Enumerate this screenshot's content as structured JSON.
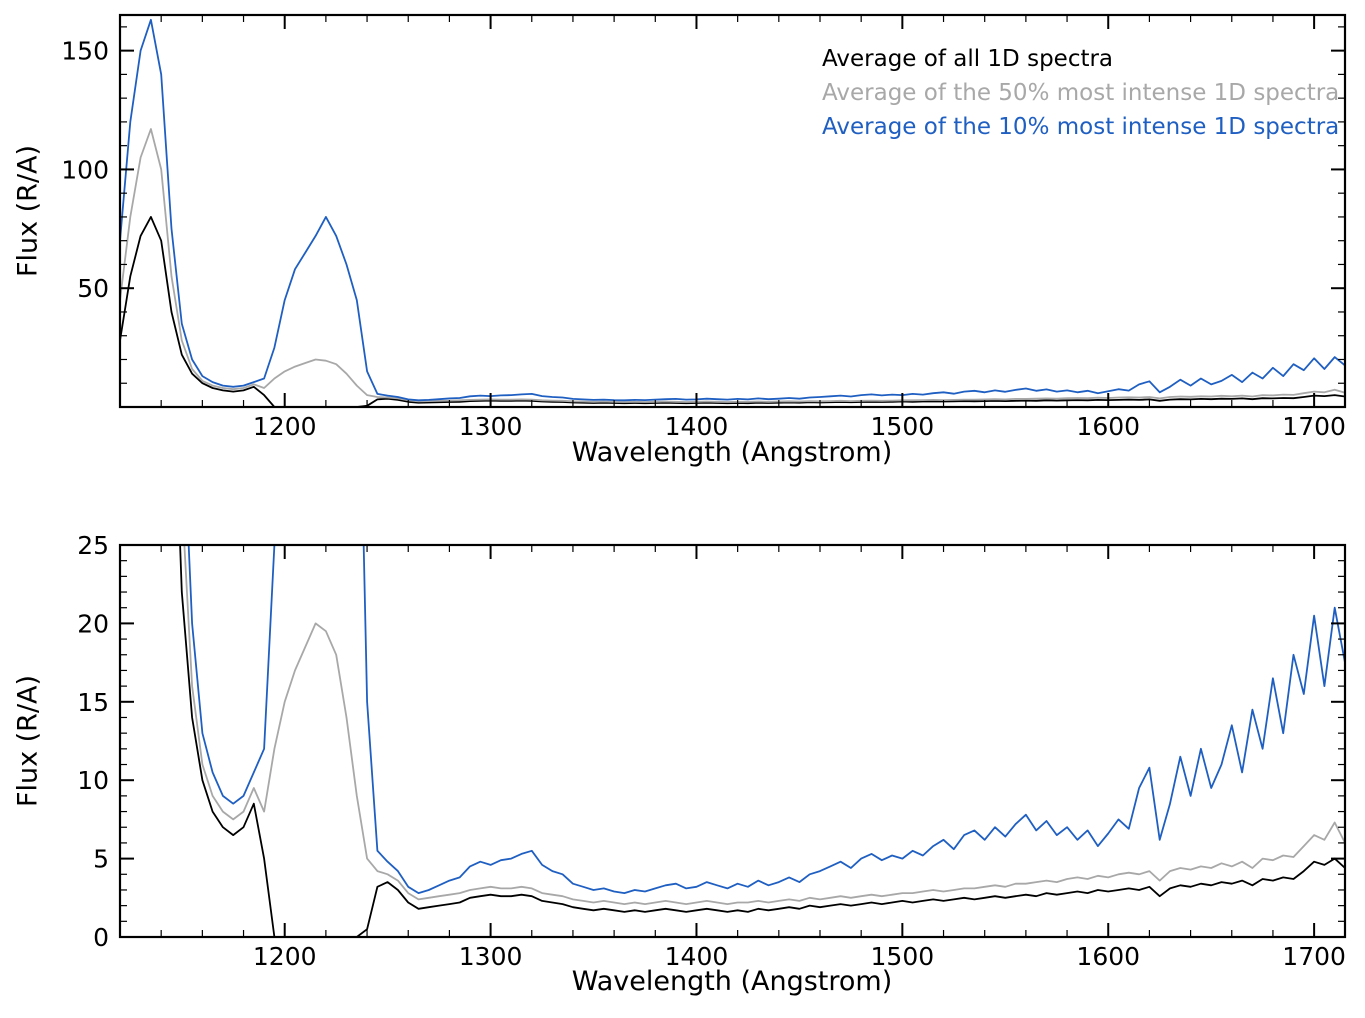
{
  "figure": {
    "xlabel": "Wavelength (Angstrom)",
    "ylabel": "Flux (R/A)",
    "background": "#ffffff"
  },
  "legend": {
    "items": [
      {
        "label": "Average of all 1D spectra",
        "color": "#000000"
      },
      {
        "label": "Average of the 50% most intense 1D spectra",
        "color": "#a8a8a8"
      },
      {
        "label": "Average of the 10% most intense 1D spectra",
        "color": "#1f5fc2"
      }
    ]
  },
  "chart_data": [
    {
      "type": "line",
      "title": "",
      "xlabel": "Wavelength (Angstrom)",
      "ylabel": "Flux (R/A)",
      "xlim": [
        1120,
        1715
      ],
      "ylim": [
        0,
        165
      ],
      "x_ticks": [
        1200,
        1300,
        1400,
        1500,
        1600,
        1700
      ],
      "y_ticks": [
        50,
        100,
        150
      ],
      "x_minor_step": 20,
      "y_minor_step": 10,
      "grid": false,
      "legend_position": "upper right inside",
      "x": [
        1120,
        1125,
        1130,
        1135,
        1140,
        1145,
        1150,
        1155,
        1160,
        1165,
        1170,
        1175,
        1180,
        1185,
        1190,
        1195,
        1200,
        1205,
        1210,
        1215,
        1220,
        1225,
        1230,
        1235,
        1240,
        1245,
        1250,
        1255,
        1260,
        1265,
        1270,
        1275,
        1280,
        1285,
        1290,
        1295,
        1300,
        1305,
        1310,
        1315,
        1320,
        1325,
        1330,
        1335,
        1340,
        1345,
        1350,
        1355,
        1360,
        1365,
        1370,
        1375,
        1380,
        1385,
        1390,
        1395,
        1400,
        1405,
        1410,
        1415,
        1420,
        1425,
        1430,
        1435,
        1440,
        1445,
        1450,
        1455,
        1460,
        1465,
        1470,
        1475,
        1480,
        1485,
        1490,
        1495,
        1500,
        1505,
        1510,
        1515,
        1520,
        1525,
        1530,
        1535,
        1540,
        1545,
        1550,
        1555,
        1560,
        1565,
        1570,
        1575,
        1580,
        1585,
        1590,
        1595,
        1600,
        1605,
        1610,
        1615,
        1620,
        1625,
        1630,
        1635,
        1640,
        1645,
        1650,
        1655,
        1660,
        1665,
        1670,
        1675,
        1680,
        1685,
        1690,
        1695,
        1700,
        1705,
        1710,
        1715
      ],
      "series": [
        {
          "name": "Average of all 1D spectra",
          "color": "#000000",
          "values": [
            28,
            55,
            72,
            80,
            70,
            40,
            22,
            14,
            10,
            8,
            7,
            6.5,
            7,
            8.5,
            5,
            0,
            0,
            0,
            0,
            0,
            0,
            0,
            0,
            0,
            0.5,
            3.2,
            3.5,
            3.0,
            2.2,
            1.8,
            1.9,
            2.0,
            2.1,
            2.2,
            2.5,
            2.6,
            2.7,
            2.6,
            2.6,
            2.7,
            2.6,
            2.3,
            2.2,
            2.1,
            1.9,
            1.8,
            1.7,
            1.8,
            1.7,
            1.6,
            1.7,
            1.6,
            1.7,
            1.8,
            1.7,
            1.6,
            1.7,
            1.8,
            1.7,
            1.6,
            1.7,
            1.6,
            1.8,
            1.7,
            1.8,
            1.9,
            1.8,
            2.0,
            1.9,
            2.0,
            2.1,
            2.0,
            2.1,
            2.2,
            2.1,
            2.2,
            2.3,
            2.2,
            2.3,
            2.4,
            2.3,
            2.4,
            2.5,
            2.4,
            2.5,
            2.6,
            2.5,
            2.6,
            2.7,
            2.6,
            2.8,
            2.7,
            2.8,
            2.9,
            2.8,
            3.0,
            2.9,
            3.0,
            3.1,
            3.0,
            3.2,
            2.6,
            3.1,
            3.3,
            3.2,
            3.4,
            3.3,
            3.5,
            3.4,
            3.6,
            3.3,
            3.7,
            3.6,
            3.8,
            3.7,
            4.2,
            4.8,
            4.6,
            5.0,
            4.4
          ]
        },
        {
          "name": "Average of the 50% most intense 1D spectra",
          "color": "#a8a8a8",
          "values": [
            45,
            80,
            105,
            117,
            100,
            55,
            28,
            16,
            11,
            9,
            8,
            7.5,
            8,
            9.5,
            8,
            12,
            15,
            17,
            18.5,
            20,
            19.5,
            18,
            14,
            9,
            5,
            4.2,
            4.0,
            3.6,
            2.8,
            2.4,
            2.5,
            2.6,
            2.7,
            2.8,
            3.0,
            3.1,
            3.2,
            3.1,
            3.1,
            3.2,
            3.1,
            2.8,
            2.7,
            2.6,
            2.4,
            2.3,
            2.2,
            2.3,
            2.2,
            2.1,
            2.2,
            2.1,
            2.2,
            2.3,
            2.2,
            2.1,
            2.2,
            2.3,
            2.2,
            2.1,
            2.2,
            2.2,
            2.3,
            2.2,
            2.3,
            2.4,
            2.3,
            2.5,
            2.4,
            2.5,
            2.6,
            2.5,
            2.6,
            2.7,
            2.6,
            2.7,
            2.8,
            2.8,
            2.9,
            3.0,
            2.9,
            3.0,
            3.1,
            3.1,
            3.2,
            3.3,
            3.2,
            3.4,
            3.4,
            3.5,
            3.6,
            3.5,
            3.7,
            3.8,
            3.7,
            3.9,
            3.8,
            4.0,
            4.1,
            4.0,
            4.2,
            3.6,
            4.2,
            4.4,
            4.3,
            4.5,
            4.4,
            4.7,
            4.5,
            4.8,
            4.4,
            5.0,
            4.9,
            5.2,
            5.1,
            5.8,
            6.5,
            6.2,
            7.3,
            6.0
          ]
        },
        {
          "name": "Average of the 10% most intense 1D spectra",
          "color": "#1f5fc2",
          "values": [
            70,
            120,
            150,
            163,
            140,
            75,
            35,
            20,
            13,
            10.5,
            9,
            8.5,
            9,
            10.5,
            12,
            25,
            45,
            58,
            65,
            72,
            80,
            72,
            60,
            45,
            15,
            5.5,
            4.8,
            4.2,
            3.2,
            2.8,
            3.0,
            3.3,
            3.6,
            3.8,
            4.5,
            4.8,
            4.6,
            4.9,
            5.0,
            5.3,
            5.5,
            4.6,
            4.2,
            4.0,
            3.4,
            3.2,
            3.0,
            3.1,
            2.9,
            2.8,
            3.0,
            2.9,
            3.1,
            3.3,
            3.4,
            3.1,
            3.2,
            3.5,
            3.3,
            3.1,
            3.4,
            3.2,
            3.6,
            3.3,
            3.5,
            3.8,
            3.5,
            4.0,
            4.2,
            4.5,
            4.8,
            4.4,
            5.0,
            5.3,
            4.9,
            5.2,
            5.0,
            5.5,
            5.2,
            5.8,
            6.2,
            5.6,
            6.5,
            6.8,
            6.2,
            7.0,
            6.4,
            7.2,
            7.8,
            6.8,
            7.4,
            6.5,
            7.0,
            6.2,
            6.8,
            5.8,
            6.6,
            7.5,
            6.9,
            9.5,
            10.8,
            6.2,
            8.5,
            11.5,
            9.0,
            12.0,
            9.5,
            11.0,
            13.5,
            10.5,
            14.5,
            12.0,
            16.5,
            13.0,
            18.0,
            15.5,
            20.5,
            16.0,
            21.0,
            17.5
          ]
        }
      ]
    },
    {
      "type": "line",
      "title": "",
      "xlabel": "Wavelength (Angstrom)",
      "ylabel": "Flux (R/A)",
      "xlim": [
        1120,
        1715
      ],
      "ylim": [
        0,
        25
      ],
      "x_ticks": [
        1200,
        1300,
        1400,
        1500,
        1600,
        1700
      ],
      "y_ticks": [
        0,
        5,
        10,
        15,
        20,
        25
      ],
      "x_minor_step": 20,
      "y_minor_step": 1,
      "grid": false,
      "legend_position": "none",
      "x": [
        1120,
        1125,
        1130,
        1135,
        1140,
        1145,
        1150,
        1155,
        1160,
        1165,
        1170,
        1175,
        1180,
        1185,
        1190,
        1195,
        1200,
        1205,
        1210,
        1215,
        1220,
        1225,
        1230,
        1235,
        1240,
        1245,
        1250,
        1255,
        1260,
        1265,
        1270,
        1275,
        1280,
        1285,
        1290,
        1295,
        1300,
        1305,
        1310,
        1315,
        1320,
        1325,
        1330,
        1335,
        1340,
        1345,
        1350,
        1355,
        1360,
        1365,
        1370,
        1375,
        1380,
        1385,
        1390,
        1395,
        1400,
        1405,
        1410,
        1415,
        1420,
        1425,
        1430,
        1435,
        1440,
        1445,
        1450,
        1455,
        1460,
        1465,
        1470,
        1475,
        1480,
        1485,
        1490,
        1495,
        1500,
        1505,
        1510,
        1515,
        1520,
        1525,
        1530,
        1535,
        1540,
        1545,
        1550,
        1555,
        1560,
        1565,
        1570,
        1575,
        1580,
        1585,
        1590,
        1595,
        1600,
        1605,
        1610,
        1615,
        1620,
        1625,
        1630,
        1635,
        1640,
        1645,
        1650,
        1655,
        1660,
        1665,
        1670,
        1675,
        1680,
        1685,
        1690,
        1695,
        1700,
        1705,
        1710,
        1715
      ],
      "series": [
        {
          "name": "Average of all 1D spectra",
          "color": "#000000",
          "values": [
            28,
            55,
            72,
            80,
            70,
            40,
            22,
            14,
            10,
            8,
            7,
            6.5,
            7,
            8.5,
            5,
            0,
            0,
            0,
            0,
            0,
            0,
            0,
            0,
            0,
            0.5,
            3.2,
            3.5,
            3.0,
            2.2,
            1.8,
            1.9,
            2.0,
            2.1,
            2.2,
            2.5,
            2.6,
            2.7,
            2.6,
            2.6,
            2.7,
            2.6,
            2.3,
            2.2,
            2.1,
            1.9,
            1.8,
            1.7,
            1.8,
            1.7,
            1.6,
            1.7,
            1.6,
            1.7,
            1.8,
            1.7,
            1.6,
            1.7,
            1.8,
            1.7,
            1.6,
            1.7,
            1.6,
            1.8,
            1.7,
            1.8,
            1.9,
            1.8,
            2.0,
            1.9,
            2.0,
            2.1,
            2.0,
            2.1,
            2.2,
            2.1,
            2.2,
            2.3,
            2.2,
            2.3,
            2.4,
            2.3,
            2.4,
            2.5,
            2.4,
            2.5,
            2.6,
            2.5,
            2.6,
            2.7,
            2.6,
            2.8,
            2.7,
            2.8,
            2.9,
            2.8,
            3.0,
            2.9,
            3.0,
            3.1,
            3.0,
            3.2,
            2.6,
            3.1,
            3.3,
            3.2,
            3.4,
            3.3,
            3.5,
            3.4,
            3.6,
            3.3,
            3.7,
            3.6,
            3.8,
            3.7,
            4.2,
            4.8,
            4.6,
            5.0,
            4.4
          ]
        },
        {
          "name": "Average of the 50% most intense 1D spectra",
          "color": "#a8a8a8",
          "values": [
            45,
            80,
            105,
            117,
            100,
            55,
            28,
            16,
            11,
            9,
            8,
            7.5,
            8,
            9.5,
            8,
            12,
            15,
            17,
            18.5,
            20,
            19.5,
            18,
            14,
            9,
            5,
            4.2,
            4.0,
            3.6,
            2.8,
            2.4,
            2.5,
            2.6,
            2.7,
            2.8,
            3.0,
            3.1,
            3.2,
            3.1,
            3.1,
            3.2,
            3.1,
            2.8,
            2.7,
            2.6,
            2.4,
            2.3,
            2.2,
            2.3,
            2.2,
            2.1,
            2.2,
            2.1,
            2.2,
            2.3,
            2.2,
            2.1,
            2.2,
            2.3,
            2.2,
            2.1,
            2.2,
            2.2,
            2.3,
            2.2,
            2.3,
            2.4,
            2.3,
            2.5,
            2.4,
            2.5,
            2.6,
            2.5,
            2.6,
            2.7,
            2.6,
            2.7,
            2.8,
            2.8,
            2.9,
            3.0,
            2.9,
            3.0,
            3.1,
            3.1,
            3.2,
            3.3,
            3.2,
            3.4,
            3.4,
            3.5,
            3.6,
            3.5,
            3.7,
            3.8,
            3.7,
            3.9,
            3.8,
            4.0,
            4.1,
            4.0,
            4.2,
            3.6,
            4.2,
            4.4,
            4.3,
            4.5,
            4.4,
            4.7,
            4.5,
            4.8,
            4.4,
            5.0,
            4.9,
            5.2,
            5.1,
            5.8,
            6.5,
            6.2,
            7.3,
            6.0
          ]
        },
        {
          "name": "Average of the 10% most intense 1D spectra",
          "color": "#1f5fc2",
          "values": [
            70,
            120,
            150,
            163,
            140,
            75,
            35,
            20,
            13,
            10.5,
            9,
            8.5,
            9,
            10.5,
            12,
            25,
            45,
            58,
            65,
            72,
            80,
            72,
            60,
            45,
            15,
            5.5,
            4.8,
            4.2,
            3.2,
            2.8,
            3.0,
            3.3,
            3.6,
            3.8,
            4.5,
            4.8,
            4.6,
            4.9,
            5.0,
            5.3,
            5.5,
            4.6,
            4.2,
            4.0,
            3.4,
            3.2,
            3.0,
            3.1,
            2.9,
            2.8,
            3.0,
            2.9,
            3.1,
            3.3,
            3.4,
            3.1,
            3.2,
            3.5,
            3.3,
            3.1,
            3.4,
            3.2,
            3.6,
            3.3,
            3.5,
            3.8,
            3.5,
            4.0,
            4.2,
            4.5,
            4.8,
            4.4,
            5.0,
            5.3,
            4.9,
            5.2,
            5.0,
            5.5,
            5.2,
            5.8,
            6.2,
            5.6,
            6.5,
            6.8,
            6.2,
            7.0,
            6.4,
            7.2,
            7.8,
            6.8,
            7.4,
            6.5,
            7.0,
            6.2,
            6.8,
            5.8,
            6.6,
            7.5,
            6.9,
            9.5,
            10.8,
            6.2,
            8.5,
            11.5,
            9.0,
            12.0,
            9.5,
            11.0,
            13.5,
            10.5,
            14.5,
            12.0,
            16.5,
            13.0,
            18.0,
            15.5,
            20.5,
            16.0,
            21.0,
            17.5
          ]
        }
      ]
    }
  ]
}
